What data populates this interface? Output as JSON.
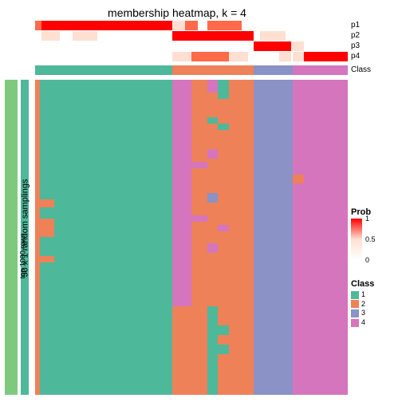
{
  "title": "membership heatmap, k = 4",
  "outer_label": "50 x 1 random samplings",
  "inner_label": "top 1000 rows",
  "row_labels": [
    "p1",
    "p2",
    "p3",
    "p4",
    "Class"
  ],
  "colors": {
    "class1": "#4eb89a",
    "class2": "#ee8158",
    "class3": "#8a92c6",
    "class4": "#d575bd",
    "sidebar_green": "#7fc97f",
    "sidebar_inner": "#4eb89a",
    "prob_high": "#ff0000",
    "prob_mid": "#ff6a4a",
    "prob_low": "#fee0d2",
    "prob_zero": "#ffffff",
    "white": "#ffffff"
  },
  "class_segments": [
    {
      "start": 0.0,
      "end": 0.44,
      "c": "class1"
    },
    {
      "start": 0.44,
      "end": 0.7,
      "c": "class2"
    },
    {
      "start": 0.7,
      "end": 0.825,
      "c": "class3"
    },
    {
      "start": 0.825,
      "end": 1.0,
      "c": "class4"
    }
  ],
  "prob_rows": [
    [
      {
        "start": 0.0,
        "end": 0.02,
        "v": 0.5
      },
      {
        "start": 0.02,
        "end": 0.44,
        "v": 1.0
      },
      {
        "start": 0.44,
        "end": 0.48,
        "v": 0.15
      },
      {
        "start": 0.48,
        "end": 0.52,
        "v": 0.4
      },
      {
        "start": 0.55,
        "end": 0.62,
        "v": 0.5
      },
      {
        "start": 0.62,
        "end": 0.66,
        "v": 0.3
      }
    ],
    [
      {
        "start": 0.02,
        "end": 0.08,
        "v": 0.12
      },
      {
        "start": 0.12,
        "end": 0.2,
        "v": 0.08
      },
      {
        "start": 0.44,
        "end": 0.7,
        "v": 0.98
      },
      {
        "start": 0.72,
        "end": 0.8,
        "v": 0.1
      }
    ],
    [
      {
        "start": 0.7,
        "end": 0.825,
        "v": 1.0
      },
      {
        "start": 0.82,
        "end": 0.86,
        "v": 0.15
      }
    ],
    [
      {
        "start": 0.44,
        "end": 0.5,
        "v": 0.12
      },
      {
        "start": 0.5,
        "end": 0.62,
        "v": 0.35
      },
      {
        "start": 0.62,
        "end": 0.68,
        "v": 0.12
      },
      {
        "start": 0.78,
        "end": 0.82,
        "v": 0.12
      },
      {
        "start": 0.825,
        "end": 0.86,
        "v": 0.15
      },
      {
        "start": 0.86,
        "end": 1.0,
        "v": 1.0
      }
    ]
  ],
  "heatmap_cols": [
    {
      "start": 0.0,
      "end": 0.015,
      "base": "class2",
      "patches": []
    },
    {
      "start": 0.015,
      "end": 0.06,
      "base": "class1",
      "patches": [
        {
          "y": 0.38,
          "h": 0.025,
          "c": "class2"
        },
        {
          "y": 0.44,
          "h": 0.06,
          "c": "class2"
        },
        {
          "y": 0.56,
          "h": 0.02,
          "c": "class2"
        }
      ]
    },
    {
      "start": 0.06,
      "end": 0.44,
      "base": "class1",
      "patches": []
    },
    {
      "start": 0.44,
      "end": 0.5,
      "base": "class4",
      "patches": [
        {
          "y": 0.72,
          "h": 0.28,
          "c": "class2"
        }
      ]
    },
    {
      "start": 0.5,
      "end": 0.55,
      "base": "class2",
      "patches": [
        {
          "y": 0.26,
          "h": 0.02,
          "c": "class4"
        },
        {
          "y": 0.43,
          "h": 0.02,
          "c": "class4"
        }
      ]
    },
    {
      "start": 0.55,
      "end": 0.585,
      "base": "class2",
      "patches": [
        {
          "y": 0.0,
          "h": 0.04,
          "c": "class4"
        },
        {
          "y": 0.12,
          "h": 0.02,
          "c": "class1"
        },
        {
          "y": 0.22,
          "h": 0.03,
          "c": "class4"
        },
        {
          "y": 0.36,
          "h": 0.03,
          "c": "class3"
        },
        {
          "y": 0.52,
          "h": 0.03,
          "c": "class4"
        },
        {
          "y": 0.72,
          "h": 0.28,
          "c": "class1"
        }
      ]
    },
    {
      "start": 0.585,
      "end": 0.62,
      "base": "class2",
      "patches": [
        {
          "y": 0.0,
          "h": 0.06,
          "c": "class1"
        },
        {
          "y": 0.14,
          "h": 0.02,
          "c": "class1"
        },
        {
          "y": 0.46,
          "h": 0.02,
          "c": "class4"
        },
        {
          "y": 0.78,
          "h": 0.03,
          "c": "class1"
        },
        {
          "y": 0.84,
          "h": 0.03,
          "c": "class1"
        }
      ]
    },
    {
      "start": 0.62,
      "end": 0.7,
      "base": "class2",
      "patches": []
    },
    {
      "start": 0.7,
      "end": 0.825,
      "base": "class3",
      "patches": []
    },
    {
      "start": 0.825,
      "end": 0.86,
      "base": "class4",
      "patches": [
        {
          "y": 0.3,
          "h": 0.03,
          "c": "class2"
        }
      ]
    },
    {
      "start": 0.86,
      "end": 1.0,
      "base": "class4",
      "patches": []
    }
  ],
  "legend_prob": {
    "title": "Prob",
    "ticks": [
      {
        "v": 1,
        "pos": 0.0
      },
      {
        "v": 0.5,
        "pos": 0.5
      },
      {
        "v": 0,
        "pos": 1.0
      }
    ]
  },
  "legend_class": {
    "title": "Class",
    "items": [
      {
        "label": "1",
        "c": "class1"
      },
      {
        "label": "2",
        "c": "class2"
      },
      {
        "label": "3",
        "c": "class3"
      },
      {
        "label": "4",
        "c": "class4"
      }
    ]
  }
}
